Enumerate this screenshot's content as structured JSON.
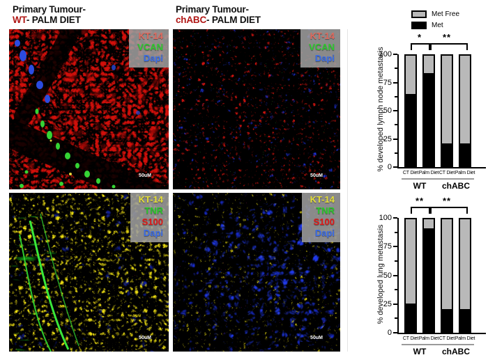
{
  "figure": {
    "titles": [
      {
        "line1": "Primary Tumour-",
        "accent": "WT",
        "rest": "- PALM DIET",
        "accent_color": "#b01715"
      },
      {
        "line1": "Primary Tumour-",
        "accent": "chABC",
        "rest": "- PALM DIET",
        "accent_color": "#b01715"
      }
    ],
    "scale_label": "50uM",
    "images": [
      {
        "id": "wt-palm-kt14-vcan-dapi",
        "markers": [
          {
            "label": "KT-14",
            "color": "#e06a5e"
          },
          {
            "label": "VCAN",
            "color": "#2ec82e"
          },
          {
            "label": "Dapi",
            "color": "#3a6ce8"
          }
        ]
      },
      {
        "id": "chabc-palm-kt14-vcan-dapi",
        "markers": [
          {
            "label": "KT-14",
            "color": "#e06a5e"
          },
          {
            "label": "VCAN",
            "color": "#2ec82e"
          },
          {
            "label": "Dapi",
            "color": "#3a6ce8"
          }
        ]
      },
      {
        "id": "wt-kt14-tnr-s100-dapi",
        "markers": [
          {
            "label": "KT-14",
            "color": "#e6df38"
          },
          {
            "label": "TNR",
            "color": "#28c828"
          },
          {
            "label": "S100",
            "color": "#e01818"
          },
          {
            "label": "Dapi",
            "color": "#3a6ce8"
          }
        ]
      },
      {
        "id": "chabc-kt14-tnr-s100-dapi",
        "markers": [
          {
            "label": "KT-14",
            "color": "#e6df38"
          },
          {
            "label": "TNR",
            "color": "#28c828"
          },
          {
            "label": "S100",
            "color": "#e01818"
          },
          {
            "label": "Dapi",
            "color": "#3a6ce8"
          }
        ]
      }
    ]
  },
  "chart_data": [
    {
      "type": "bar",
      "stacked": true,
      "ylabel": "% developed lymph node metastasis",
      "categories": [
        "CT Diet",
        "Palm Diet",
        "CT Diet",
        "Palm Diet"
      ],
      "group_labels": [
        "WT",
        "chABC"
      ],
      "series": [
        {
          "name": "Met",
          "color": "#000000",
          "values": [
            65,
            84,
            20,
            20
          ]
        },
        {
          "name": "Met Free",
          "color": "#b9b9b9",
          "values": [
            35,
            16,
            80,
            80
          ]
        }
      ],
      "ylim": [
        0,
        100
      ],
      "yticks": [
        0,
        25,
        50,
        75,
        100
      ],
      "minor_yticks": [
        12.5,
        37.5,
        62.5,
        87.5
      ],
      "legend": {
        "position": "top",
        "items": [
          {
            "label": "Met Free",
            "color": "#b9b9b9"
          },
          {
            "label": "Met",
            "color": "#000000"
          }
        ]
      },
      "significance": [
        {
          "label": "*",
          "from_bar": 0,
          "to_bar": 1
        },
        {
          "label": "**",
          "from_bar": 1,
          "to_bar": 3
        }
      ]
    },
    {
      "type": "bar",
      "stacked": true,
      "ylabel": "% developed lung  metastasis",
      "categories": [
        "CT Diet",
        "Palm Diet",
        "CT Diet",
        "Palm Diet"
      ],
      "group_labels": [
        "WT",
        "chABC"
      ],
      "series": [
        {
          "name": "Met",
          "color": "#000000",
          "values": [
            25,
            92,
            20,
            20
          ]
        },
        {
          "name": "Met Free",
          "color": "#b9b9b9",
          "values": [
            75,
            8,
            80,
            80
          ]
        }
      ],
      "ylim": [
        0,
        100
      ],
      "yticks": [
        0,
        25,
        50,
        75,
        100
      ],
      "minor_yticks": [
        12.5,
        37.5,
        62.5,
        87.5
      ],
      "significance": [
        {
          "label": "**",
          "from_bar": 0,
          "to_bar": 1
        },
        {
          "label": "**",
          "from_bar": 1,
          "to_bar": 3
        }
      ]
    }
  ]
}
